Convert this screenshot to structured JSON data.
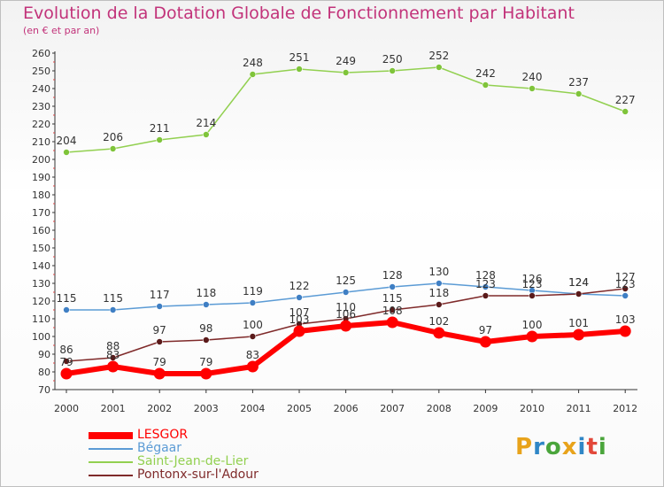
{
  "header": {
    "title": "Evolution de la Dotation Globale de Fonctionnement par Habitant",
    "subtitle": "(en € et par an)"
  },
  "logo": {
    "text": "Proxiti",
    "colors": [
      "#e8a31b",
      "#2f86c6",
      "#4aa53b",
      "#e8a31b",
      "#2f86c6",
      "#e2483a",
      "#4aa53b"
    ]
  },
  "chart_data": {
    "type": "line",
    "title": "Evolution de la Dotation Globale de Fonctionnement par Habitant",
    "subtitle": "(en € et par an)",
    "xlabel": "",
    "ylabel": "",
    "x": [
      "2000",
      "2001",
      "2002",
      "2003",
      "2004",
      "2005",
      "2006",
      "2007",
      "2008",
      "2009",
      "2010",
      "2011",
      "2012"
    ],
    "ylim": [
      70,
      260
    ],
    "yticks": [
      70,
      80,
      90,
      100,
      110,
      120,
      130,
      140,
      150,
      160,
      170,
      180,
      190,
      200,
      210,
      220,
      230,
      240,
      250,
      260
    ],
    "grid": false,
    "legend_position": "bottom-left",
    "series": [
      {
        "name": "LESGOR",
        "color": "#ff0000",
        "values": [
          79,
          83,
          79,
          79,
          83,
          103,
          106,
          108,
          102,
          97,
          100,
          101,
          103
        ],
        "labels": [
          "79",
          "83",
          "79",
          "79",
          "83",
          "103",
          "106",
          "108",
          "102",
          "97",
          "100",
          "101",
          "103"
        ]
      },
      {
        "name": "Bégaar",
        "color": "#5b9bd5",
        "values": [
          115,
          115,
          117,
          118,
          119,
          122,
          125,
          128,
          130,
          128,
          126,
          124,
          123
        ],
        "labels": [
          "115",
          "115",
          "117",
          "118",
          "119",
          "122",
          "125",
          "128",
          "130",
          "128",
          "126",
          "124",
          "123"
        ]
      },
      {
        "name": "Saint-Jean-de-Lier",
        "color": "#92d050",
        "values": [
          204,
          206,
          211,
          214,
          248,
          251,
          249,
          250,
          252,
          242,
          240,
          237,
          227
        ],
        "labels": [
          "204",
          "206",
          "211",
          "214",
          "248",
          "251",
          "249",
          "250",
          "252",
          "242",
          "240",
          "237",
          "227"
        ]
      },
      {
        "name": "Pontonx-sur-l'Adour",
        "color": "#7f2a2a",
        "values": [
          86,
          88,
          97,
          98,
          100,
          107,
          110,
          115,
          118,
          123,
          123,
          124,
          127
        ],
        "labels": [
          "86",
          "88",
          "97",
          "98",
          "100",
          "107",
          "110",
          "115",
          "118",
          "123",
          "123",
          "124",
          "127"
        ]
      }
    ]
  }
}
